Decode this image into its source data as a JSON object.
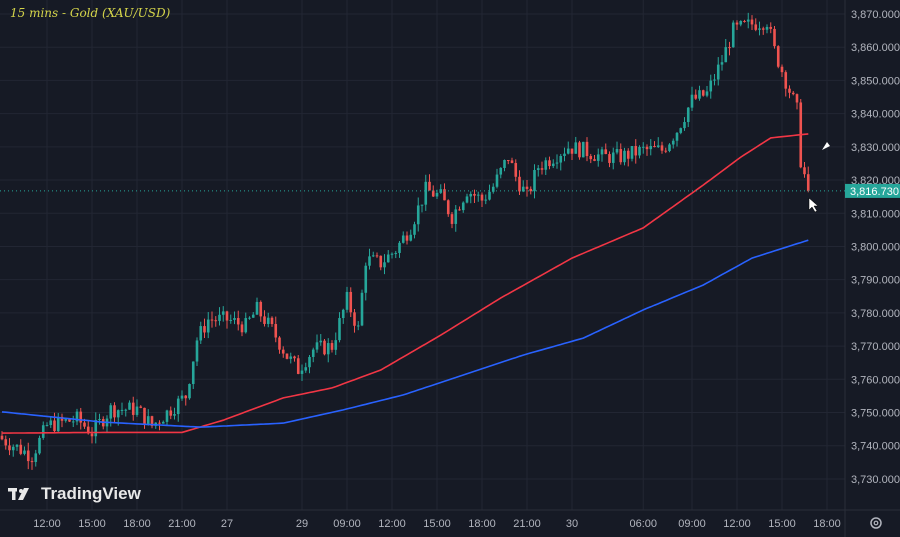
{
  "chart_data": {
    "type": "candlestick",
    "title": "15 mins - Gold (XAU/USD)",
    "ylim": [
      3725,
      3873
    ],
    "y_ticks": [
      3870,
      3860,
      3850,
      3840,
      3830,
      3820,
      3810,
      3800,
      3790,
      3780,
      3770,
      3760,
      3750,
      3740,
      3730
    ],
    "y_tick_labels": [
      "3,870.000",
      "3,860.000",
      "3,850.000",
      "3,840.000",
      "3,830.000",
      "3,820.000",
      "3,810.000",
      "3,800.000",
      "3,790.000",
      "3,780.000",
      "3,770.000",
      "3,760.000",
      "3,750.000",
      "3,740.000",
      "3,730.000"
    ],
    "x_ticks": [
      {
        "bar": -12,
        "label": "09:00"
      },
      {
        "bar": 12,
        "label": "12:00"
      },
      {
        "bar": 24,
        "label": "15:00"
      },
      {
        "bar": 36,
        "label": "18:00"
      },
      {
        "bar": 48,
        "label": "21:00"
      },
      {
        "bar": 60,
        "label": "27"
      },
      {
        "bar": 80,
        "label": "29"
      },
      {
        "bar": 92,
        "label": "09:00"
      },
      {
        "bar": 104,
        "label": "12:00"
      },
      {
        "bar": 116,
        "label": "15:00"
      },
      {
        "bar": 128,
        "label": "18:00"
      },
      {
        "bar": 140,
        "label": "21:00"
      },
      {
        "bar": 152,
        "label": "30"
      },
      {
        "bar": 171,
        "label": "06:00"
      },
      {
        "bar": 184,
        "label": "09:00"
      },
      {
        "bar": 196,
        "label": "12:00"
      },
      {
        "bar": 208,
        "label": "15:00"
      },
      {
        "bar": 220,
        "label": "18:00"
      }
    ],
    "close_path": [
      [
        0,
        3742
      ],
      [
        8,
        3737
      ],
      [
        12,
        3746
      ],
      [
        20,
        3748
      ],
      [
        24,
        3744
      ],
      [
        29,
        3751
      ],
      [
        36,
        3751
      ],
      [
        40,
        3746
      ],
      [
        45,
        3751
      ],
      [
        49,
        3755
      ],
      [
        52,
        3772
      ],
      [
        55,
        3778
      ],
      [
        60,
        3778
      ],
      [
        65,
        3776
      ],
      [
        68,
        3781
      ],
      [
        72,
        3775
      ],
      [
        76,
        3767
      ],
      [
        79,
        3763
      ],
      [
        83,
        3769
      ],
      [
        88,
        3770
      ],
      [
        92,
        3784
      ],
      [
        95,
        3775
      ],
      [
        97,
        3796
      ],
      [
        101,
        3795
      ],
      [
        105,
        3799
      ],
      [
        109,
        3806
      ],
      [
        113,
        3817
      ],
      [
        117,
        3815
      ],
      [
        120,
        3809
      ],
      [
        124,
        3817
      ],
      [
        128,
        3814
      ],
      [
        131,
        3818
      ],
      [
        135,
        3827
      ],
      [
        137,
        3821
      ],
      [
        140,
        3815
      ],
      [
        143,
        3824
      ],
      [
        147,
        3827
      ],
      [
        151,
        3830
      ],
      [
        155,
        3829
      ],
      [
        160,
        3827
      ],
      [
        165,
        3827
      ],
      [
        171,
        3829
      ],
      [
        176,
        3829
      ],
      [
        180,
        3835
      ],
      [
        184,
        3844
      ],
      [
        188,
        3846
      ],
      [
        192,
        3856
      ],
      [
        195,
        3865
      ],
      [
        200,
        3867
      ],
      [
        204,
        3868
      ],
      [
        206,
        3859
      ],
      [
        209,
        3850
      ],
      [
        212,
        3841
      ],
      [
        213,
        3826
      ],
      [
        215,
        3816.73
      ]
    ],
    "moving_averages": [
      {
        "color": "#f23645",
        "points": [
          [
            0,
            3743.8
          ],
          [
            27,
            3744
          ],
          [
            48,
            3744
          ],
          [
            59,
            3747.7
          ],
          [
            75,
            3754.4
          ],
          [
            88,
            3757.4
          ],
          [
            101,
            3762.8
          ],
          [
            117,
            3773.3
          ],
          [
            133,
            3784.5
          ],
          [
            152,
            3796.5
          ],
          [
            171,
            3805.6
          ],
          [
            187,
            3818.5
          ],
          [
            197,
            3826.9
          ],
          [
            205,
            3832.7
          ],
          [
            215,
            3833.9
          ]
        ]
      },
      {
        "color": "#2962ff",
        "points": [
          [
            0,
            3750.2
          ],
          [
            27,
            3747.1
          ],
          [
            53,
            3745.6
          ],
          [
            75,
            3746.8
          ],
          [
            91,
            3750.8
          ],
          [
            107,
            3755.3
          ],
          [
            123,
            3761.3
          ],
          [
            139,
            3767.3
          ],
          [
            155,
            3772.4
          ],
          [
            171,
            3780.9
          ],
          [
            187,
            3788.4
          ],
          [
            200,
            3796.5
          ],
          [
            215,
            3801.9
          ]
        ]
      }
    ],
    "last_price": 3816.73,
    "last_price_label": "3,816.730",
    "up_color": "#26a69a",
    "down_color": "#ef5350",
    "grid": true
  },
  "branding": {
    "logo_text": "TradingView"
  },
  "icons": {
    "settings": "gear-icon",
    "cursor": "arrow-cursor-icon"
  }
}
